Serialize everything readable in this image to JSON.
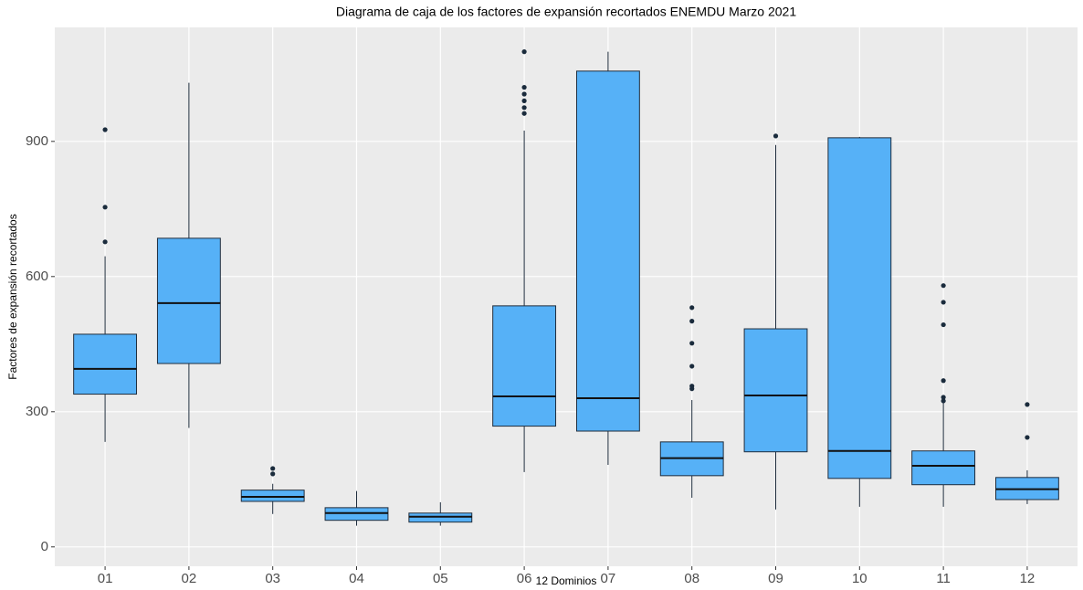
{
  "chart_data": {
    "type": "box",
    "title": "Diagrama de caja de los factores de expansión recortados ENEMDU Marzo 2021",
    "x_label": "12 Dominios",
    "y_label": "Factores de expansión recortados",
    "categories": [
      "01",
      "02",
      "03",
      "04",
      "05",
      "06",
      "07",
      "08",
      "09",
      "10",
      "11",
      "12"
    ],
    "whisker_low": [
      233,
      264,
      73,
      47,
      47,
      166,
      182,
      109,
      83,
      89,
      89,
      95
    ],
    "q1": [
      339,
      407,
      101,
      59,
      55,
      268,
      257,
      158,
      211,
      152,
      138,
      105
    ],
    "median": [
      395,
      541,
      111,
      75,
      67,
      334,
      330,
      197,
      336,
      213,
      180,
      128
    ],
    "q3": [
      472,
      685,
      126,
      87,
      75,
      535,
      1056,
      233,
      484,
      908,
      213,
      154
    ],
    "whisker_high": [
      645,
      1030,
      140,
      124,
      99,
      924,
      1099,
      326,
      892,
      910,
      328,
      170
    ],
    "outliers": [
      [
        926,
        754,
        677
      ],
      [],
      [
        174,
        162
      ],
      [],
      [],
      [
        1099,
        1020,
        1005,
        990,
        975,
        962
      ],
      [],
      [
        531,
        501,
        452,
        401,
        357,
        351
      ],
      [
        912
      ],
      [],
      [
        580,
        543,
        493,
        369,
        332,
        324
      ],
      [
        316,
        243
      ]
    ],
    "color": "#56b1f7",
    "ylim": [
      -43,
      1153
    ],
    "yticks": [
      0,
      300,
      600,
      900
    ],
    "grid": true
  }
}
